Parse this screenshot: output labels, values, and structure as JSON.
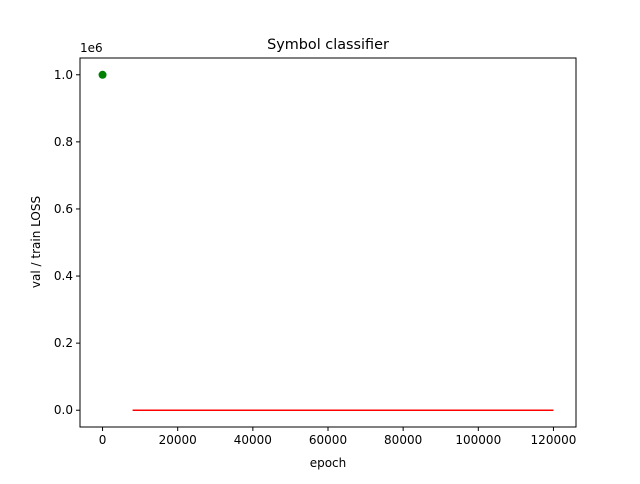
{
  "chart_data": {
    "type": "line",
    "title": "Symbol classifier",
    "xlabel": "epoch",
    "ylabel": "val / train LOSS",
    "y_offset_label": "1e6",
    "xlim": [
      -6000,
      126000
    ],
    "ylim": [
      -0.05,
      1.05
    ],
    "xticks": [
      0,
      20000,
      40000,
      60000,
      80000,
      100000,
      120000
    ],
    "xtick_labels": [
      "0",
      "20000",
      "40000",
      "60000",
      "80000",
      "100000",
      "120000"
    ],
    "yticks": [
      0.0,
      0.2,
      0.4,
      0.6,
      0.8,
      1.0
    ],
    "ytick_labels": [
      "0.0",
      "0.2",
      "0.4",
      "0.6",
      "0.8",
      "1.0"
    ],
    "grid": false,
    "series": [
      {
        "kind": "line",
        "color": "#ff0000",
        "x": [
          8000,
          120000
        ],
        "y": [
          0.0,
          0.0
        ]
      },
      {
        "kind": "scatter",
        "color": "#008000",
        "x": [
          0
        ],
        "y": [
          1.0
        ]
      }
    ]
  }
}
